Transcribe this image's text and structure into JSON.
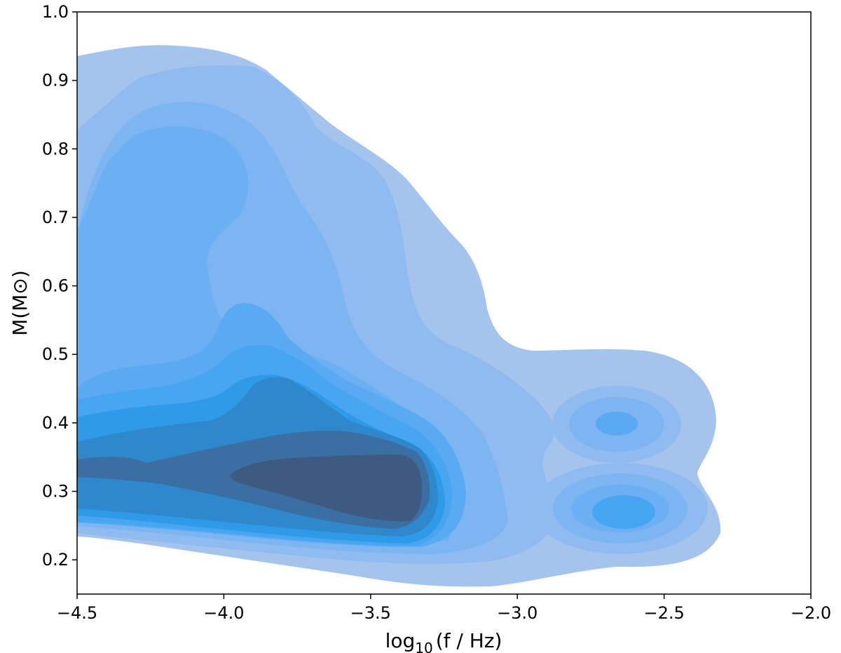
{
  "chart_data": {
    "type": "contour",
    "title": "",
    "xlabel": "log10(f / Hz)",
    "xlabel_main": "log",
    "xlabel_sub": "10",
    "xlabel_rest": "(f / Hz)",
    "ylabel": "M(M⊙)",
    "xlim": [
      -4.5,
      -2.0
    ],
    "ylim": [
      0.15,
      1.0
    ],
    "xticks": [
      "−4.5",
      "−4.0",
      "−3.5",
      "−3.0",
      "−2.5",
      "−2.0"
    ],
    "xtick_values": [
      -4.5,
      -4.0,
      -3.5,
      -3.0,
      -2.5,
      -2.0
    ],
    "yticks": [
      "0.2",
      "0.3",
      "0.4",
      "0.5",
      "0.6",
      "0.7",
      "0.8",
      "0.9",
      "1.0"
    ],
    "ytick_values": [
      0.2,
      0.3,
      0.4,
      0.5,
      0.6,
      0.7,
      0.8,
      0.9,
      1.0
    ],
    "grid": false,
    "legend": "none",
    "level_colors": [
      "#a4c4ee",
      "#8fbbf0",
      "#7db5f2",
      "#6cb0f3",
      "#5aaaf3",
      "#47a5f1",
      "#2f9ae8",
      "#2f87cc",
      "#3b6ea3",
      "#3e5a80"
    ],
    "density_peaks": [
      {
        "x": -3.55,
        "y": 0.31,
        "level": "highest"
      },
      {
        "x": -2.66,
        "y": 0.27,
        "level": "secondary"
      },
      {
        "x": -2.66,
        "y": 0.4,
        "level": "secondary"
      }
    ],
    "outer_extent": {
      "x": [
        -4.5,
        -2.3
      ],
      "y": [
        0.165,
        0.95
      ]
    }
  }
}
